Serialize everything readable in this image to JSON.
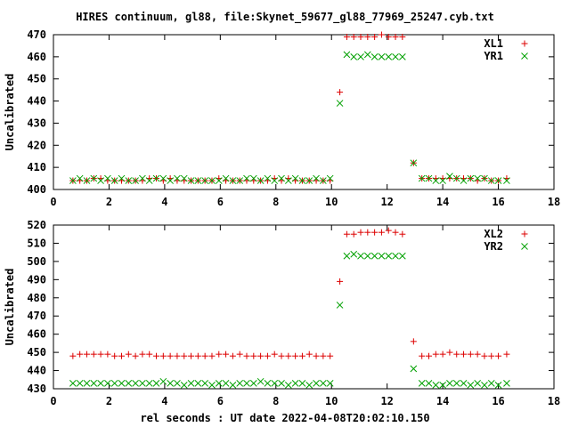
{
  "title": "HIRES continuum, gl88, file:Skynet_59677_gl88_77969_25247.cyb.txt",
  "xlabel": "rel seconds : UT date 2022-04-08T20:02:10.150",
  "colors": {
    "red": "#dd0000",
    "green": "#00a000"
  },
  "chart_data": [
    {
      "type": "scatter",
      "ylabel": "Uncalibrated",
      "xlim": [
        0,
        18
      ],
      "ylim": [
        400,
        470
      ],
      "xticks": [
        0,
        2,
        4,
        6,
        8,
        10,
        12,
        14,
        16,
        18
      ],
      "yticks": [
        400,
        410,
        420,
        430,
        440,
        450,
        460,
        470
      ],
      "grid": false,
      "legend_position": "top-right",
      "series": [
        {
          "name": "XL1",
          "marker": "plus",
          "color": "#dd0000",
          "x": [
            0.7,
            0.95,
            1.2,
            1.45,
            1.7,
            1.95,
            2.2,
            2.45,
            2.7,
            2.95,
            3.2,
            3.45,
            3.7,
            3.95,
            4.2,
            4.45,
            4.7,
            4.95,
            5.2,
            5.45,
            5.7,
            5.95,
            6.2,
            6.45,
            6.7,
            6.95,
            7.2,
            7.45,
            7.7,
            7.95,
            8.2,
            8.45,
            8.7,
            8.95,
            9.2,
            9.45,
            9.7,
            9.95,
            10.3,
            10.55,
            10.8,
            11.05,
            11.3,
            11.55,
            11.8,
            12.05,
            12.3,
            12.55,
            12.95,
            13.25,
            13.5,
            13.75,
            14.0,
            14.25,
            14.5,
            14.75,
            15.0,
            15.25,
            15.5,
            15.75,
            16.0,
            16.3
          ],
          "y": [
            404,
            404,
            404,
            405,
            405,
            404,
            404,
            404,
            404,
            404,
            404,
            405,
            405,
            404,
            405,
            404,
            404,
            404,
            404,
            404,
            404,
            405,
            404,
            404,
            404,
            404,
            404,
            404,
            404,
            405,
            404,
            405,
            404,
            404,
            404,
            404,
            404,
            404,
            444,
            469,
            469,
            469,
            469,
            469,
            470,
            469,
            469,
            469,
            412,
            405,
            405,
            405,
            405,
            405,
            405,
            405,
            405,
            404,
            405,
            404,
            404,
            405
          ]
        },
        {
          "name": "YR1",
          "marker": "cross",
          "color": "#00a000",
          "x": [
            0.7,
            0.95,
            1.2,
            1.45,
            1.7,
            1.95,
            2.2,
            2.45,
            2.7,
            2.95,
            3.2,
            3.45,
            3.7,
            3.95,
            4.2,
            4.45,
            4.7,
            4.95,
            5.2,
            5.45,
            5.7,
            5.95,
            6.2,
            6.45,
            6.7,
            6.95,
            7.2,
            7.45,
            7.7,
            7.95,
            8.2,
            8.45,
            8.7,
            8.95,
            9.2,
            9.45,
            9.7,
            9.95,
            10.3,
            10.55,
            10.8,
            11.05,
            11.3,
            11.55,
            11.8,
            12.05,
            12.3,
            12.55,
            12.95,
            13.25,
            13.5,
            13.75,
            14.0,
            14.25,
            14.5,
            14.75,
            15.0,
            15.25,
            15.5,
            15.75,
            16.0,
            16.3
          ],
          "y": [
            404,
            405,
            404,
            405,
            404,
            405,
            404,
            405,
            404,
            404,
            405,
            404,
            405,
            405,
            404,
            405,
            405,
            404,
            404,
            404,
            404,
            404,
            405,
            404,
            404,
            405,
            405,
            404,
            405,
            404,
            405,
            404,
            405,
            404,
            404,
            405,
            404,
            405,
            439,
            461,
            460,
            460,
            461,
            460,
            460,
            460,
            460,
            460,
            412,
            405,
            405,
            404,
            404,
            406,
            405,
            404,
            405,
            405,
            405,
            404,
            404,
            404
          ]
        }
      ]
    },
    {
      "type": "scatter",
      "ylabel": "Uncalibrated",
      "xlim": [
        0,
        18
      ],
      "ylim": [
        430,
        520
      ],
      "xticks": [
        0,
        2,
        4,
        6,
        8,
        10,
        12,
        14,
        16,
        18
      ],
      "yticks": [
        430,
        440,
        450,
        460,
        470,
        480,
        490,
        500,
        510,
        520
      ],
      "grid": false,
      "legend_position": "top-right",
      "series": [
        {
          "name": "XL2",
          "marker": "plus",
          "color": "#dd0000",
          "x": [
            0.7,
            0.95,
            1.2,
            1.45,
            1.7,
            1.95,
            2.2,
            2.45,
            2.7,
            2.95,
            3.2,
            3.45,
            3.7,
            3.95,
            4.2,
            4.45,
            4.7,
            4.95,
            5.2,
            5.45,
            5.7,
            5.95,
            6.2,
            6.45,
            6.7,
            6.95,
            7.2,
            7.45,
            7.7,
            7.95,
            8.2,
            8.45,
            8.7,
            8.95,
            9.2,
            9.45,
            9.7,
            9.95,
            10.3,
            10.55,
            10.8,
            11.05,
            11.3,
            11.55,
            11.8,
            12.05,
            12.3,
            12.55,
            12.95,
            13.25,
            13.5,
            13.75,
            14.0,
            14.25,
            14.5,
            14.75,
            15.0,
            15.25,
            15.5,
            15.75,
            16.0,
            16.3
          ],
          "y": [
            448,
            449,
            449,
            449,
            449,
            449,
            448,
            448,
            449,
            448,
            449,
            449,
            448,
            448,
            448,
            448,
            448,
            448,
            448,
            448,
            448,
            449,
            449,
            448,
            449,
            448,
            448,
            448,
            448,
            449,
            448,
            448,
            448,
            448,
            449,
            448,
            448,
            448,
            489,
            515,
            515,
            516,
            516,
            516,
            516,
            517,
            516,
            515,
            456,
            448,
            448,
            449,
            449,
            450,
            449,
            449,
            449,
            449,
            448,
            448,
            448,
            449
          ]
        },
        {
          "name": "YR2",
          "marker": "cross",
          "color": "#00a000",
          "x": [
            0.7,
            0.95,
            1.2,
            1.45,
            1.7,
            1.95,
            2.2,
            2.45,
            2.7,
            2.95,
            3.2,
            3.45,
            3.7,
            3.95,
            4.2,
            4.45,
            4.7,
            4.95,
            5.2,
            5.45,
            5.7,
            5.95,
            6.2,
            6.45,
            6.7,
            6.95,
            7.2,
            7.45,
            7.7,
            7.95,
            8.2,
            8.45,
            8.7,
            8.95,
            9.2,
            9.45,
            9.7,
            9.95,
            10.3,
            10.55,
            10.8,
            11.05,
            11.3,
            11.55,
            11.8,
            12.05,
            12.3,
            12.55,
            12.95,
            13.25,
            13.5,
            13.75,
            14.0,
            14.25,
            14.5,
            14.75,
            15.0,
            15.25,
            15.5,
            15.75,
            16.0,
            16.3
          ],
          "y": [
            433,
            433,
            433,
            433,
            433,
            433,
            433,
            433,
            433,
            433,
            433,
            433,
            433,
            434,
            433,
            433,
            432,
            433,
            433,
            433,
            432,
            433,
            433,
            432,
            433,
            433,
            433,
            434,
            433,
            433,
            433,
            432,
            433,
            433,
            432,
            433,
            433,
            433,
            476,
            503,
            504,
            503,
            503,
            503,
            503,
            503,
            503,
            503,
            441,
            433,
            433,
            432,
            432,
            433,
            433,
            433,
            432,
            433,
            432,
            433,
            432,
            433
          ]
        }
      ]
    }
  ]
}
